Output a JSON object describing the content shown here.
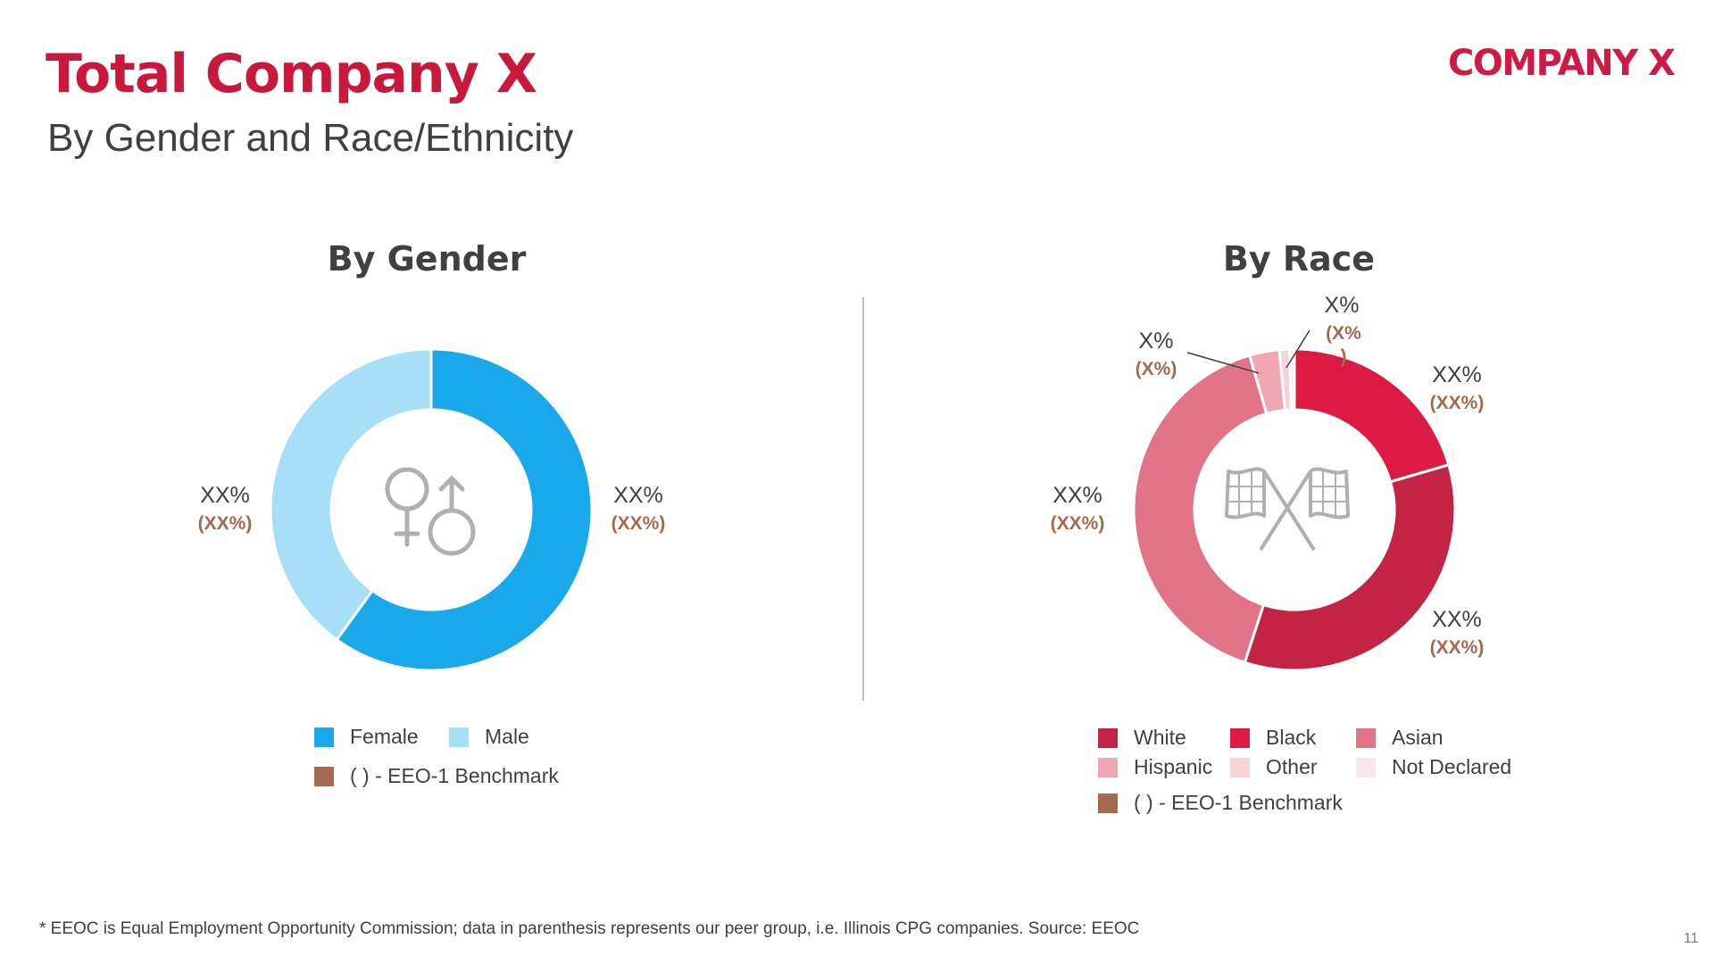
{
  "header": {
    "title": "Total Company X",
    "subtitle": "By Gender and Race/Ethnicity",
    "logo_text": "COMPANY X"
  },
  "chart_data": [
    {
      "type": "donut",
      "title": "By Gender",
      "center_icon": "gender-symbols-icon",
      "series": [
        {
          "name": "Female",
          "value": 0.6,
          "color": "#19a9eb",
          "label": "XX%",
          "benchmark": "(XX%)"
        },
        {
          "name": "Male",
          "value": 0.4,
          "color": "#a7dff7",
          "label": "XX%",
          "benchmark": "(XX%)"
        }
      ],
      "benchmark_legend": {
        "label": "( ) - EEO-1 Benchmark",
        "color": "#a5694f"
      }
    },
    {
      "type": "donut",
      "title": "By Race",
      "center_icon": "checkered-flags-icon",
      "series": [
        {
          "name": "Black",
          "value": 0.205,
          "color": "#dc1a42",
          "label": "XX%",
          "benchmark": "(XX%)"
        },
        {
          "name": "White",
          "value": 0.345,
          "color": "#c42443",
          "label": "XX%",
          "benchmark": "(XX%)"
        },
        {
          "name": "Asian",
          "value": 0.405,
          "color": "#e27488",
          "label": "XX%",
          "benchmark": "(XX%)"
        },
        {
          "name": "Hispanic",
          "value": 0.03,
          "color": "#f0a7b3",
          "label": "X%",
          "benchmark": "(X%)"
        },
        {
          "name": "Other",
          "value": 0.01,
          "color": "#f8d2d9",
          "label": "",
          "benchmark": ""
        },
        {
          "name": "Not Declared",
          "value": 0.005,
          "color": "#fbe6ea",
          "label": "X%",
          "benchmark": "(X%\n)"
        }
      ],
      "benchmark_legend": {
        "label": "( ) - EEO-1 Benchmark",
        "color": "#a5694f"
      }
    }
  ],
  "footer": {
    "footnote": "* EEOC is Equal Employment Opportunity Commission; data in parenthesis represents our peer group, i.e. Illinois CPG companies. Source: EEOC",
    "page_number": "11"
  }
}
